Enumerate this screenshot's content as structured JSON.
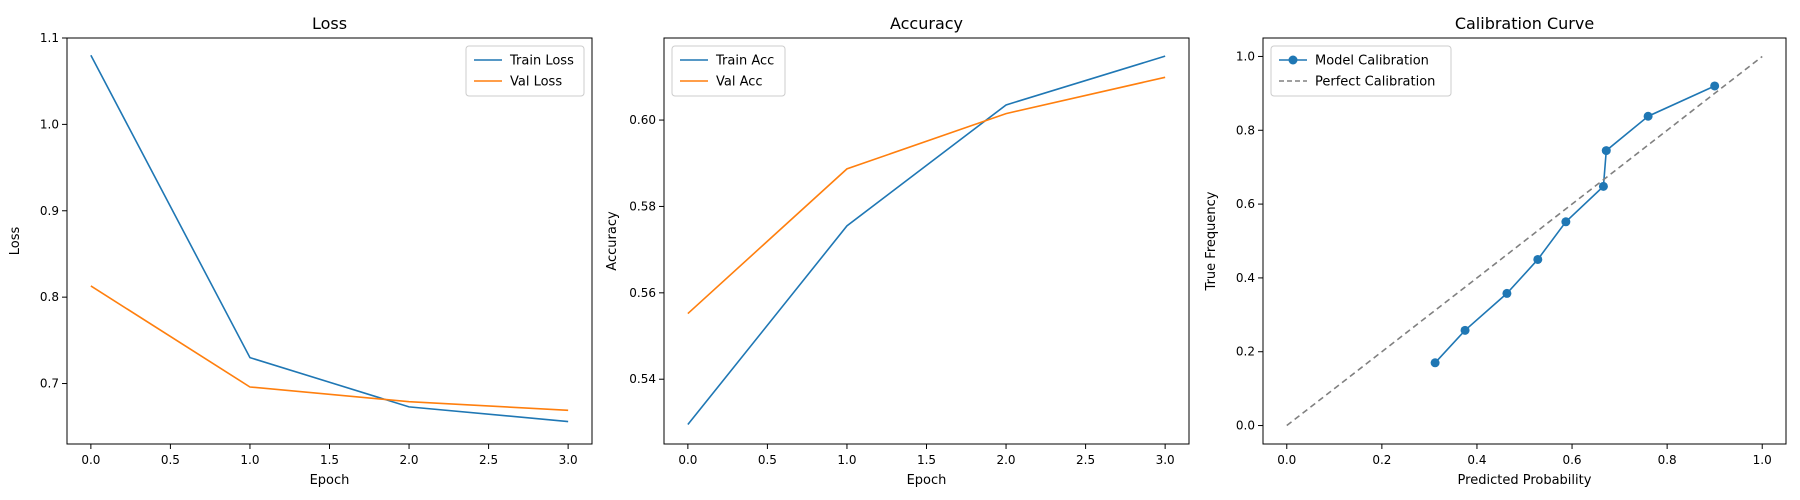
{
  "colors": {
    "blue": "#1f77b4",
    "orange": "#ff7f0e",
    "gray": "#808080"
  },
  "chart_data": [
    {
      "type": "line",
      "title": "Loss",
      "xlabel": "Epoch",
      "ylabel": "Loss",
      "xlim": [
        -0.15,
        3.15
      ],
      "ylim": [
        0.63,
        1.1
      ],
      "xticks": [
        "0.0",
        "0.5",
        "1.0",
        "1.5",
        "2.0",
        "2.5",
        "3.0"
      ],
      "yticks": [
        "0.7",
        "0.8",
        "0.9",
        "1.0",
        "1.1"
      ],
      "x": [
        0,
        1,
        2,
        3
      ],
      "series": [
        {
          "name": "Train Loss",
          "color": "#1f77b4",
          "values": [
            1.08,
            0.73,
            0.673,
            0.656
          ]
        },
        {
          "name": "Val Loss",
          "color": "#ff7f0e",
          "values": [
            0.813,
            0.696,
            0.679,
            0.669
          ]
        }
      ],
      "legend": "top-right",
      "grid": false
    },
    {
      "type": "line",
      "title": "Accuracy",
      "xlabel": "Epoch",
      "ylabel": "Accuracy",
      "xlim": [
        -0.15,
        3.15
      ],
      "ylim": [
        0.525,
        0.619
      ],
      "xticks": [
        "0.0",
        "0.5",
        "1.0",
        "1.5",
        "2.0",
        "2.5",
        "3.0"
      ],
      "yticks": [
        "0.54",
        "0.56",
        "0.58",
        "0.60"
      ],
      "x": [
        0,
        1,
        2,
        3
      ],
      "series": [
        {
          "name": "Train Acc",
          "color": "#1f77b4",
          "values": [
            0.5295,
            0.5755,
            0.6035,
            0.6148
          ]
        },
        {
          "name": "Val Acc",
          "color": "#ff7f0e",
          "values": [
            0.5552,
            0.5887,
            0.6015,
            0.6099
          ]
        }
      ],
      "legend": "top-left",
      "grid": false
    },
    {
      "type": "line",
      "title": "Calibration Curve",
      "xlabel": "Predicted Probability",
      "ylabel": "True Frequency",
      "xlim": [
        -0.05,
        1.05
      ],
      "ylim": [
        -0.05,
        1.05
      ],
      "xticks": [
        "0.0",
        "0.2",
        "0.4",
        "0.6",
        "0.8",
        "1.0"
      ],
      "yticks": [
        "0.0",
        "0.2",
        "0.4",
        "0.6",
        "0.8",
        "1.0"
      ],
      "series": [
        {
          "name": "Model Calibration",
          "color": "#1f77b4",
          "marker": "circle",
          "x": [
            0.312,
            0.375,
            0.463,
            0.528,
            0.587,
            0.666,
            0.672,
            0.76,
            0.9
          ],
          "y": [
            0.17,
            0.258,
            0.358,
            0.45,
            0.552,
            0.648,
            0.745,
            0.838,
            0.92
          ]
        },
        {
          "name": "Perfect Calibration",
          "color": "#808080",
          "dash": "dashed",
          "x": [
            0.0,
            1.0
          ],
          "y": [
            0.0,
            1.0
          ]
        }
      ],
      "legend": "top-left",
      "grid": false
    }
  ]
}
